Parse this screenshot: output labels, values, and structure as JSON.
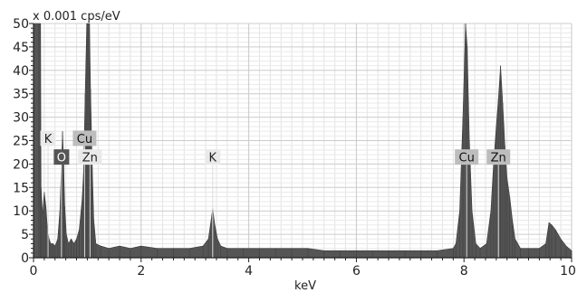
{
  "chart_data": {
    "type": "area",
    "title": "",
    "ylabel": "x 0.001 cps/eV",
    "xlabel": "keV",
    "xlim": [
      0,
      10
    ],
    "ylim": [
      0,
      50
    ],
    "x_ticks": [
      0,
      2,
      4,
      6,
      8,
      10
    ],
    "y_ticks": [
      0,
      5,
      10,
      15,
      20,
      25,
      30,
      35,
      40,
      45,
      50
    ],
    "grid": true,
    "legend": "none",
    "fill_color": "#555555",
    "series": [
      {
        "points": [
          [
            0.0,
            50
          ],
          [
            0.1,
            50
          ],
          [
            0.13,
            50
          ],
          [
            0.14,
            15
          ],
          [
            0.17,
            9
          ],
          [
            0.2,
            14
          ],
          [
            0.23,
            11
          ],
          [
            0.26,
            6
          ],
          [
            0.29,
            4
          ],
          [
            0.32,
            3
          ],
          [
            0.36,
            3
          ],
          [
            0.4,
            2.5
          ],
          [
            0.45,
            4
          ],
          [
            0.49,
            10
          ],
          [
            0.52,
            20
          ],
          [
            0.54,
            27
          ],
          [
            0.56,
            20
          ],
          [
            0.58,
            11
          ],
          [
            0.61,
            5
          ],
          [
            0.65,
            3
          ],
          [
            0.7,
            4
          ],
          [
            0.75,
            3
          ],
          [
            0.8,
            4
          ],
          [
            0.85,
            6
          ],
          [
            0.9,
            12
          ],
          [
            0.93,
            18
          ],
          [
            0.96,
            35
          ],
          [
            0.99,
            50
          ],
          [
            1.01,
            50
          ],
          [
            1.04,
            50
          ],
          [
            1.06,
            36
          ],
          [
            1.09,
            20
          ],
          [
            1.12,
            8
          ],
          [
            1.16,
            3
          ],
          [
            1.25,
            2.5
          ],
          [
            1.4,
            2
          ],
          [
            1.6,
            2.5
          ],
          [
            1.8,
            2
          ],
          [
            2.0,
            2.5
          ],
          [
            2.3,
            2
          ],
          [
            2.6,
            2
          ],
          [
            2.9,
            2
          ],
          [
            3.15,
            2.5
          ],
          [
            3.25,
            4
          ],
          [
            3.3,
            8
          ],
          [
            3.33,
            10.5
          ],
          [
            3.37,
            7
          ],
          [
            3.42,
            4
          ],
          [
            3.48,
            2.5
          ],
          [
            3.6,
            2
          ],
          [
            3.9,
            2
          ],
          [
            4.2,
            2
          ],
          [
            4.5,
            2
          ],
          [
            4.8,
            2
          ],
          [
            5.1,
            2
          ],
          [
            5.4,
            1.5
          ],
          [
            5.7,
            1.5
          ],
          [
            6.0,
            1.5
          ],
          [
            6.3,
            1.5
          ],
          [
            6.6,
            1.5
          ],
          [
            6.9,
            1.5
          ],
          [
            7.2,
            1.5
          ],
          [
            7.5,
            1.5
          ],
          [
            7.8,
            2
          ],
          [
            7.85,
            3
          ],
          [
            7.92,
            10
          ],
          [
            7.98,
            30
          ],
          [
            8.03,
            50
          ],
          [
            8.06,
            45
          ],
          [
            8.1,
            25
          ],
          [
            8.15,
            10
          ],
          [
            8.22,
            3
          ],
          [
            8.3,
            2
          ],
          [
            8.42,
            3
          ],
          [
            8.5,
            10
          ],
          [
            8.55,
            20
          ],
          [
            8.6,
            28
          ],
          [
            8.64,
            34
          ],
          [
            8.68,
            41
          ],
          [
            8.72,
            33
          ],
          [
            8.76,
            24
          ],
          [
            8.8,
            17
          ],
          [
            8.85,
            13
          ],
          [
            8.9,
            8
          ],
          [
            8.95,
            4
          ],
          [
            9.05,
            2
          ],
          [
            9.2,
            2
          ],
          [
            9.4,
            2
          ],
          [
            9.52,
            3
          ],
          [
            9.58,
            7.5
          ],
          [
            9.63,
            7
          ],
          [
            9.7,
            6
          ],
          [
            9.8,
            4
          ],
          [
            9.9,
            2.5
          ],
          [
            10.0,
            1.5
          ]
        ]
      }
    ],
    "annotations": [
      {
        "text": "K",
        "x": 0.27,
        "y": 25.5,
        "style": "light"
      },
      {
        "text": "O",
        "x": 0.52,
        "y": 21.5,
        "style": "dark"
      },
      {
        "text": "Cu",
        "x": 0.95,
        "y": 25.5,
        "style": "mid"
      },
      {
        "text": "Zn",
        "x": 1.05,
        "y": 21.5,
        "style": "light"
      },
      {
        "text": "K",
        "x": 3.33,
        "y": 21.5,
        "style": "light"
      },
      {
        "text": "Cu",
        "x": 8.05,
        "y": 21.5,
        "style": "mid"
      },
      {
        "text": "Zn",
        "x": 8.64,
        "y": 21.5,
        "style": "mid"
      }
    ]
  }
}
